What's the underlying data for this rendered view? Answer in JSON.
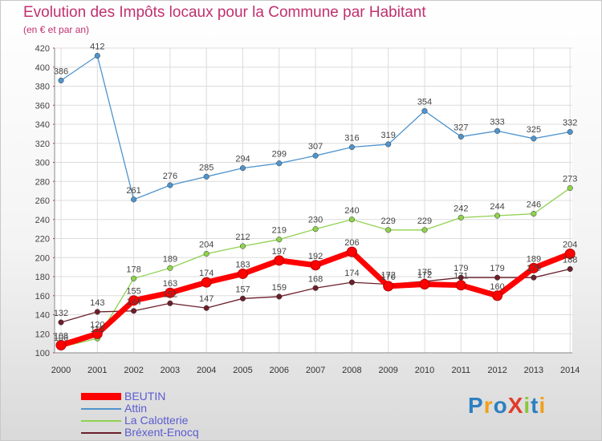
{
  "chart_data": {
    "type": "line",
    "title": "Evolution des Impôts locaux pour la Commune par Habitant",
    "subtitle": "(en € et par an)",
    "x": [
      "2000",
      "2001",
      "2002",
      "2003",
      "2004",
      "2005",
      "2006",
      "2007",
      "2008",
      "2009",
      "2010",
      "2011",
      "2012",
      "2013",
      "2014"
    ],
    "ylim": [
      100,
      420
    ],
    "yticks": [
      100,
      120,
      140,
      160,
      180,
      200,
      220,
      240,
      260,
      280,
      300,
      320,
      340,
      360,
      380,
      400,
      420
    ],
    "grid": true,
    "series": [
      {
        "name": "BEUTIN",
        "color": "#ff0000",
        "values": [
          108,
          120,
          155,
          163,
          174,
          183,
          197,
          192,
          206,
          170,
          172,
          171,
          160,
          189,
          204
        ]
      },
      {
        "name": "Attin",
        "color": "#4f94cd",
        "values": [
          386,
          412,
          261,
          276,
          285,
          294,
          299,
          307,
          316,
          319,
          354,
          327,
          333,
          325,
          332
        ]
      },
      {
        "name": "La Calotterie",
        "color": "#8fd14f",
        "values": [
          106,
          115,
          178,
          189,
          204,
          212,
          219,
          230,
          240,
          229,
          229,
          242,
          244,
          246,
          273
        ]
      },
      {
        "name": "Bréxent-Enocq",
        "color": "#6b1f2a",
        "values": [
          132,
          143,
          144,
          152,
          147,
          157,
          159,
          168,
          174,
          172,
          175,
          179,
          179,
          179,
          188
        ]
      }
    ],
    "legend_position": "bottom-left"
  },
  "logo_text": "ProXiti"
}
